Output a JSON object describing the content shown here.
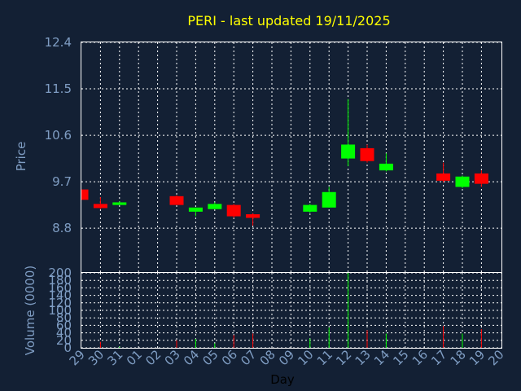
{
  "chart_data": {
    "type": "candlestick",
    "title": "PERI - last updated 19/11/2025",
    "price_panel": {
      "ylabel": "Price",
      "ylim": [
        7.95,
        12.4
      ],
      "yticks": [
        "12.4",
        "11.5",
        "10.6",
        "9.7",
        "8.8"
      ],
      "grid": true
    },
    "volume_panel": {
      "ylabel": "Volume (0000)",
      "ylim": [
        0,
        200
      ],
      "yticks": [
        "200",
        "180",
        "160",
        "140",
        "120",
        "100",
        "80",
        "60",
        "40",
        "20",
        "0"
      ],
      "grid": true
    },
    "xlabel": "Day",
    "x_ticks": [
      "29",
      "30",
      "31",
      "01",
      "02",
      "03",
      "04",
      "05",
      "06",
      "07",
      "08",
      "09",
      "10",
      "11",
      "12",
      "13",
      "14",
      "15",
      "16",
      "17",
      "18",
      "19",
      "20"
    ],
    "colors": {
      "up": "#00ff00",
      "down": "#ff0000",
      "title": "#ffff00",
      "label": "#7f9dc3",
      "background": "#132034"
    },
    "candles": [
      {
        "day": "29",
        "open": 9.55,
        "high": 9.55,
        "low": 9.35,
        "close": 9.35,
        "volume": 0
      },
      {
        "day": "30",
        "open": 9.27,
        "high": 9.4,
        "low": 9.17,
        "close": 9.19,
        "volume": 16
      },
      {
        "day": "31",
        "open": 9.25,
        "high": 9.32,
        "low": 9.25,
        "close": 9.3,
        "volume": 3
      },
      {
        "day": "03",
        "open": 9.42,
        "high": 9.44,
        "low": 9.25,
        "close": 9.25,
        "volume": 20
      },
      {
        "day": "04",
        "open": 9.12,
        "high": 9.2,
        "low": 9.03,
        "close": 9.2,
        "volume": 24
      },
      {
        "day": "05",
        "open": 9.17,
        "high": 9.3,
        "low": 9.17,
        "close": 9.27,
        "volume": 12
      },
      {
        "day": "06",
        "open": 9.25,
        "high": 9.27,
        "low": 9.0,
        "close": 9.03,
        "volume": 34
      },
      {
        "day": "07",
        "open": 9.07,
        "high": 9.09,
        "low": 8.85,
        "close": 9.0,
        "volume": 38
      },
      {
        "day": "10",
        "open": 9.12,
        "high": 9.27,
        "low": 9.1,
        "close": 9.25,
        "volume": 25
      },
      {
        "day": "11",
        "open": 9.2,
        "high": 9.6,
        "low": 9.2,
        "close": 9.5,
        "volume": 54
      },
      {
        "day": "12",
        "open": 10.15,
        "high": 11.3,
        "low": 10.0,
        "close": 10.42,
        "volume": 200
      },
      {
        "day": "13",
        "open": 10.35,
        "high": 10.42,
        "low": 10.07,
        "close": 10.1,
        "volume": 47
      },
      {
        "day": "14",
        "open": 9.92,
        "high": 10.25,
        "low": 9.9,
        "close": 10.05,
        "volume": 38
      },
      {
        "day": "17",
        "open": 9.86,
        "high": 10.07,
        "low": 9.69,
        "close": 9.72,
        "volume": 58
      },
      {
        "day": "18",
        "open": 9.6,
        "high": 9.82,
        "low": 9.58,
        "close": 9.8,
        "volume": 38
      },
      {
        "day": "19",
        "open": 9.86,
        "high": 9.92,
        "low": 9.6,
        "close": 9.66,
        "volume": 50
      }
    ]
  }
}
